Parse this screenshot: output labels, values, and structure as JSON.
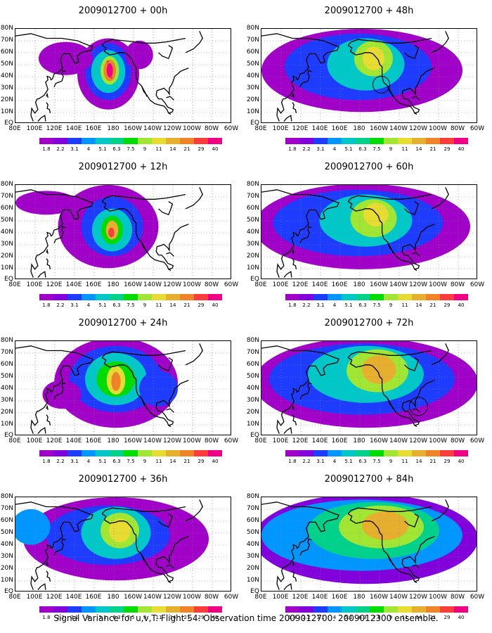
{
  "panels": [
    {
      "title": "2009012700 + 00h",
      "lead": 0
    },
    {
      "title": "2009012700 + 48h",
      "lead": 48
    },
    {
      "title": "2009012700 + 12h",
      "lead": 12
    },
    {
      "title": "2009012700 + 60h",
      "lead": 60
    },
    {
      "title": "2009012700 + 24h",
      "lead": 24
    },
    {
      "title": "2009012700 + 72h",
      "lead": 72
    },
    {
      "title": "2009012700 + 36h",
      "lead": 36
    },
    {
      "title": "2009012700 + 84h",
      "lead": 84
    }
  ],
  "y_labels": [
    "80N",
    "70N",
    "60N",
    "50N",
    "40N",
    "30N",
    "20N",
    "10N",
    "EQ"
  ],
  "x_labels": [
    "80E",
    "100E",
    "120E",
    "140E",
    "160E",
    "180",
    "160W",
    "140W",
    "120W",
    "100W",
    "80W",
    "60W"
  ],
  "colorbar": {
    "levels": [
      "1.8",
      "2.2",
      "3.1",
      "4",
      "5.1",
      "6.3",
      "7.5",
      "9",
      "11",
      "14",
      "21",
      "29",
      "40"
    ],
    "colors": [
      "#a000c8",
      "#8200dc",
      "#1e3cff",
      "#0096ff",
      "#00c8c8",
      "#00d28c",
      "#00dc00",
      "#a0e632",
      "#e6dc32",
      "#e6af2d",
      "#f08228",
      "#fa3c3c",
      "#f00082"
    ]
  },
  "caption": "Signal Variance for u,v,T. Flight 54. Observation time 2009012700. 2009012300 ensemble."
}
